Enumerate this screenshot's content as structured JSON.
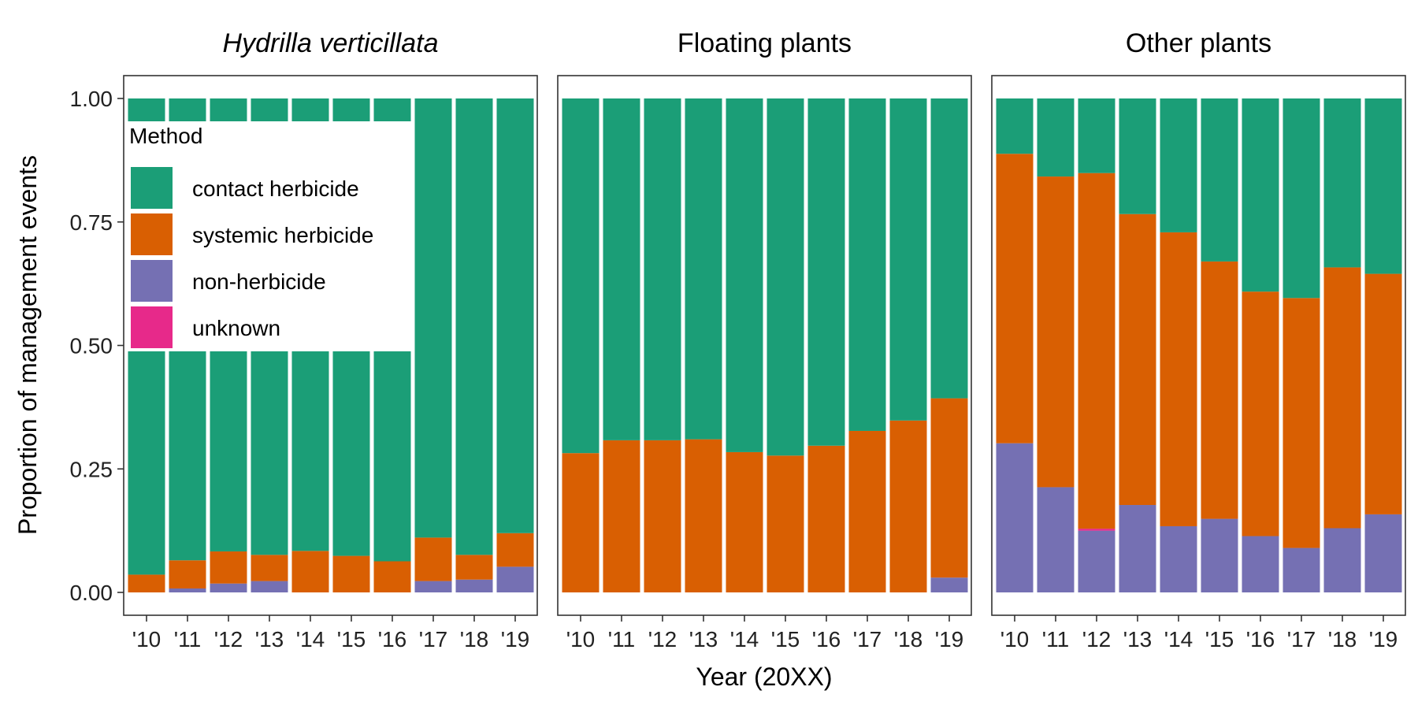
{
  "chart_data": {
    "type": "bar",
    "stacked": true,
    "ylabel": "Proportion of management events",
    "xlabel": "Year (20XX)",
    "ylim": [
      0,
      1
    ],
    "yticks": [
      "0.00",
      "0.25",
      "0.50",
      "0.75",
      "1.00"
    ],
    "yticks_values": [
      0,
      0.25,
      0.5,
      0.75,
      1.0
    ],
    "grid": false,
    "legend": {
      "title": "Method",
      "placement": "inside-top-left-of-first-panel",
      "entries": [
        "contact herbicide",
        "systemic herbicide",
        "non-herbicide",
        "unknown"
      ]
    },
    "colors": {
      "contact herbicide": "#1B9E77",
      "systemic herbicide": "#D95F02",
      "non-herbicide": "#7570B3",
      "unknown": "#E7298A"
    },
    "categories": [
      "'10",
      "'11",
      "'12",
      "'13",
      "'14",
      "'15",
      "'16",
      "'17",
      "'18",
      "'19"
    ],
    "panels": [
      {
        "title": "Hydrilla verticillata",
        "italic": true,
        "series": [
          {
            "name": "non-herbicide",
            "values": [
              0.0,
              0.008,
              0.018,
              0.023,
              0.0,
              0.0,
              0.0,
              0.023,
              0.026,
              0.052
            ]
          },
          {
            "name": "unknown",
            "values": [
              0,
              0,
              0,
              0,
              0,
              0,
              0,
              0,
              0,
              0
            ]
          },
          {
            "name": "systemic herbicide",
            "values": [
              0.036,
              0.057,
              0.065,
              0.053,
              0.084,
              0.074,
              0.063,
              0.088,
              0.05,
              0.068
            ]
          },
          {
            "name": "contact herbicide",
            "values": [
              0.964,
              0.935,
              0.917,
              0.924,
              0.916,
              0.926,
              0.937,
              0.889,
              0.924,
              0.88
            ]
          }
        ]
      },
      {
        "title": "Floating plants",
        "italic": false,
        "series": [
          {
            "name": "non-herbicide",
            "values": [
              0,
              0,
              0,
              0,
              0,
              0,
              0,
              0,
              0,
              0.03
            ]
          },
          {
            "name": "unknown",
            "values": [
              0,
              0,
              0,
              0,
              0,
              0,
              0,
              0,
              0,
              0
            ]
          },
          {
            "name": "systemic herbicide",
            "values": [
              0.282,
              0.308,
              0.308,
              0.31,
              0.284,
              0.277,
              0.297,
              0.327,
              0.348,
              0.363
            ]
          },
          {
            "name": "contact herbicide",
            "values": [
              0.718,
              0.692,
              0.692,
              0.69,
              0.716,
              0.723,
              0.703,
              0.673,
              0.652,
              0.607
            ]
          }
        ]
      },
      {
        "title": "Other plants",
        "italic": false,
        "series": [
          {
            "name": "non-herbicide",
            "values": [
              0.302,
              0.213,
              0.125,
              0.177,
              0.134,
              0.149,
              0.114,
              0.09,
              0.13,
              0.158
            ]
          },
          {
            "name": "unknown",
            "values": [
              0,
              0,
              0.004,
              0,
              0,
              0,
              0,
              0,
              0,
              0
            ]
          },
          {
            "name": "systemic herbicide",
            "values": [
              0.586,
              0.629,
              0.72,
              0.589,
              0.595,
              0.521,
              0.495,
              0.506,
              0.528,
              0.487
            ]
          },
          {
            "name": "contact herbicide",
            "values": [
              0.112,
              0.158,
              0.151,
              0.234,
              0.271,
              0.33,
              0.391,
              0.404,
              0.342,
              0.355
            ]
          }
        ]
      }
    ]
  }
}
